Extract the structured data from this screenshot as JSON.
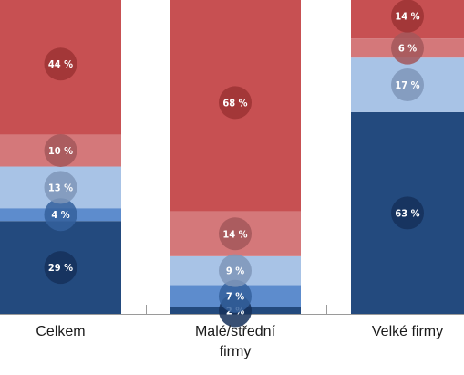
{
  "chart_data": {
    "type": "bar",
    "stacked": true,
    "percent": true,
    "categories": [
      "Celkem",
      "Malé/střední firmy",
      "Velké firmy"
    ],
    "category_label_lines": [
      [
        "Celkem"
      ],
      [
        "Malé/střední",
        "firmy"
      ],
      [
        "Velké firmy"
      ]
    ],
    "series": [
      {
        "values": [
          29,
          2,
          63
        ],
        "color": "#234a7e"
      },
      {
        "values": [
          4,
          7,
          0
        ],
        "color": "#5d8ccd"
      },
      {
        "values": [
          13,
          9,
          17
        ],
        "color": "#a8c3e6"
      },
      {
        "values": [
          10,
          14,
          6
        ],
        "color": "#d4787a"
      },
      {
        "values": [
          44,
          68,
          14
        ],
        "color": "#c75052"
      }
    ],
    "labels": [
      [
        "29 %",
        "4 %",
        "13 %",
        "10 %",
        "44 %"
      ],
      [
        "2 %",
        "7 %",
        "9 %",
        "14 %",
        "68 %"
      ],
      [
        "63 %",
        "",
        "17 %",
        "6 %",
        "14 %"
      ]
    ],
    "label_circle_colors": [
      "#15305a",
      "#34609c",
      "#7f96b8",
      "#a3575a",
      "#9c3234"
    ],
    "ylim": [
      0,
      100
    ],
    "grid": false,
    "legend": "none"
  }
}
